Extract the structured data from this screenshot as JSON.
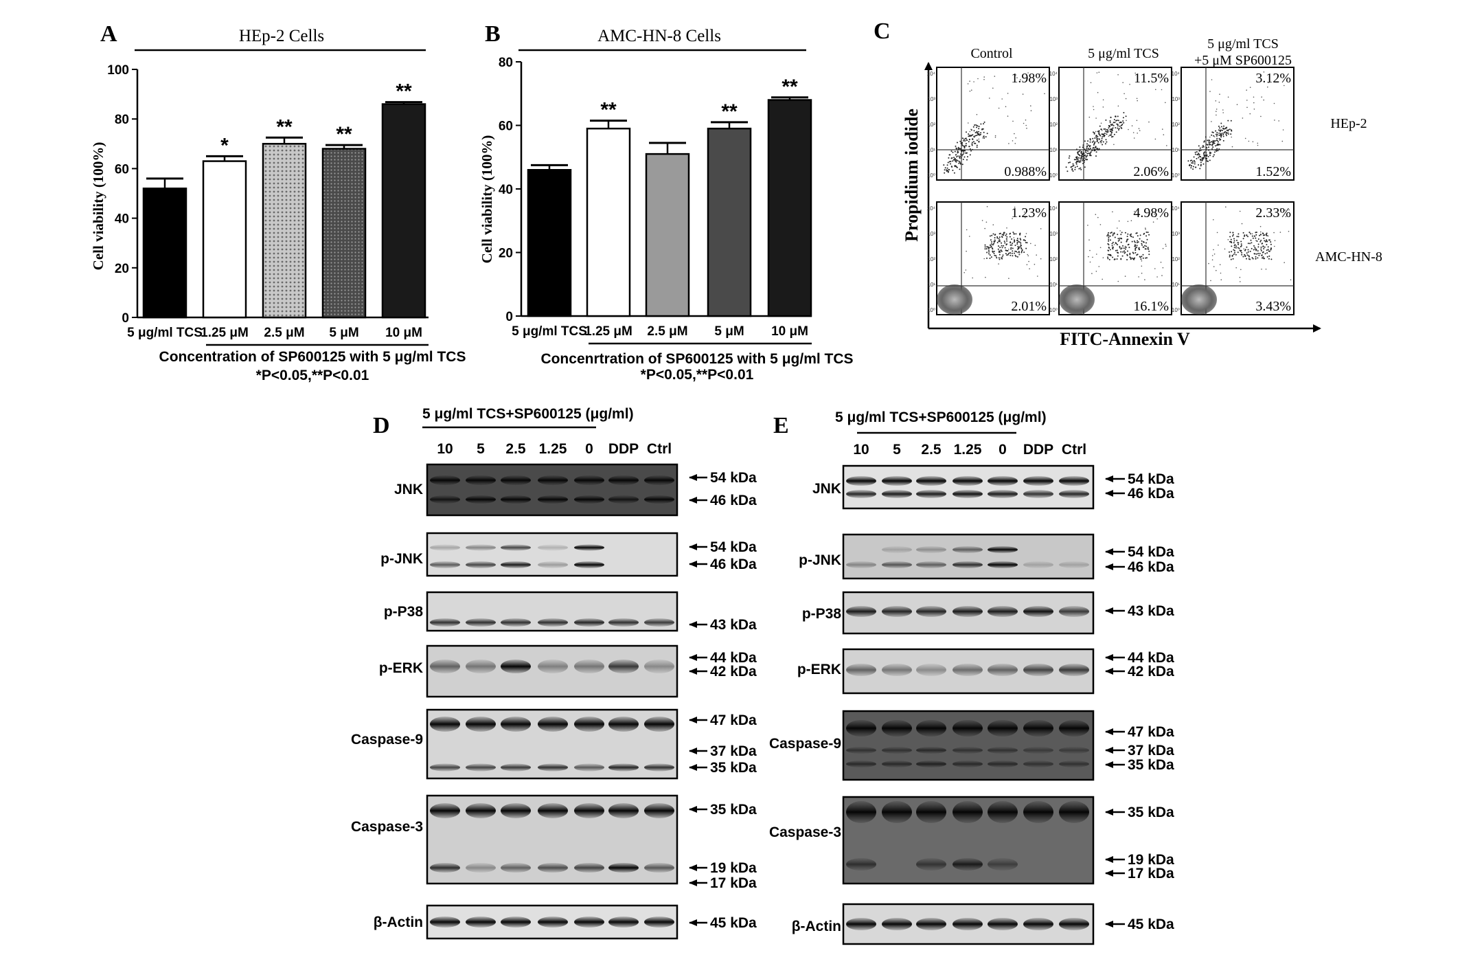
{
  "panels": {
    "A": {
      "letter": "A",
      "title": "HEp-2 Cells",
      "ylabel": "Cell viability (100%)",
      "ylim": [
        0,
        100
      ],
      "yticks": [
        "0",
        "20",
        "40",
        "60",
        "80",
        "100"
      ],
      "xlabel": "Concentration of SP600125 with 5 μg/ml TCS",
      "footnote": "*P<0.05,**P<0.01"
    },
    "B": {
      "letter": "B",
      "title": "AMC-HN-8 Cells",
      "ylabel": "Cell viability (100%)",
      "ylim": [
        0,
        80
      ],
      "yticks": [
        "0",
        "20",
        "40",
        "60",
        "80"
      ],
      "xlabel": "Concenrtration of SP600125 with 5 μg/ml TCS",
      "footnote": "*P<0.05,**P<0.01"
    },
    "C": {
      "letter": "C",
      "col_labels": [
        "Control",
        "5 μg/ml TCS",
        "5 μg/ml TCS",
        "+5 μM SP600125"
      ],
      "row_labels": [
        "HEp-2",
        "AMC-HN-8"
      ],
      "ylabel": "Propidium iodide",
      "xlabel": "FITC-Annexin V",
      "quadrants": [
        [
          "1.98%",
          "0.988%"
        ],
        [
          "11.5%",
          "2.06%"
        ],
        [
          "3.12%",
          "1.52%"
        ],
        [
          "1.23%",
          "2.01%"
        ],
        [
          "4.98%",
          "16.1%"
        ],
        [
          "2.33%",
          "3.43%"
        ]
      ],
      "axis_ticks": [
        "10⁰",
        "10¹",
        "10²",
        "10³",
        "10⁴"
      ]
    },
    "D": {
      "letter": "D",
      "header": "5 μg/ml TCS+SP600125 (μg/ml)",
      "lanes": [
        "10",
        "5",
        "2.5",
        "1.25",
        "0",
        "DDP",
        "Ctrl"
      ],
      "blots": [
        {
          "label": "JNK",
          "markers": [
            "54 kDa",
            "46 kDa"
          ]
        },
        {
          "label": "p-JNK",
          "markers": [
            "54 kDa",
            "46 kDa"
          ]
        },
        {
          "label": "p-P38",
          "markers": [
            "43 kDa"
          ]
        },
        {
          "label": "p-ERK",
          "markers": [
            "44 kDa",
            "42 kDa"
          ]
        },
        {
          "label": "Caspase-9",
          "markers": [
            "47 kDa",
            "37 kDa",
            "35 kDa"
          ]
        },
        {
          "label": "Caspase-3",
          "markers": [
            "35 kDa",
            "19 kDa",
            "17 kDa"
          ]
        },
        {
          "label": "β-Actin",
          "markers": [
            "45 kDa"
          ]
        }
      ]
    },
    "E": {
      "letter": "E",
      "header": "5 μg/ml TCS+SP600125 (μg/ml)",
      "lanes": [
        "10",
        "5",
        "2.5",
        "1.25",
        "0",
        "DDP",
        "Ctrl"
      ],
      "blots": [
        {
          "label": "JNK",
          "markers": [
            "54 kDa",
            "46 kDa"
          ]
        },
        {
          "label": "p-JNK",
          "markers": [
            "54 kDa",
            "46 kDa"
          ]
        },
        {
          "label": "p-P38",
          "markers": [
            "43 kDa"
          ]
        },
        {
          "label": "p-ERK",
          "markers": [
            "44 kDa",
            "42 kDa"
          ]
        },
        {
          "label": "Caspase-9",
          "markers": [
            "47 kDa",
            "37 kDa",
            "35 kDa"
          ]
        },
        {
          "label": "Caspase-3",
          "markers": [
            "35 kDa",
            "19 kDa",
            "17 kDa"
          ]
        },
        {
          "label": "β-Actin",
          "markers": [
            "45 kDa"
          ]
        }
      ]
    }
  },
  "chart_data": [
    {
      "type": "bar",
      "title": "HEp-2 Cells",
      "ylabel": "Cell viability (100%)",
      "xlabel": "Concentration of SP600125 with 5 μg/ml TCS",
      "ylim": [
        0,
        100
      ],
      "categories": [
        "5 μg/ml TCS",
        "1.25 μM",
        "2.5 μM",
        "5 μM",
        "10 μM"
      ],
      "values": [
        52,
        63,
        70,
        68,
        86
      ],
      "errors": [
        4,
        2,
        2.5,
        1.5,
        0.8
      ],
      "significance": [
        "",
        "*",
        "**",
        "**",
        "**"
      ],
      "fills": [
        "#000000",
        "#ffffff",
        "#b0b0b0",
        "#555555",
        "#1a1a1a"
      ]
    },
    {
      "type": "bar",
      "title": "AMC-HN-8 Cells",
      "ylabel": "Cell viability (100%)",
      "xlabel": "Concenrtration of SP600125 with 5 μg/ml TCS",
      "ylim": [
        0,
        80
      ],
      "categories": [
        "5 μg/ml TCS",
        "1.25 μM",
        "2.5 μM",
        "5 μM",
        "10 μM"
      ],
      "values": [
        46,
        59,
        51,
        59,
        68
      ],
      "errors": [
        1.5,
        2.5,
        3.5,
        2,
        0.8
      ],
      "significance": [
        "",
        "**",
        "",
        "**",
        "**"
      ],
      "fills": [
        "#000000",
        "#ffffff",
        "#9a9a9a",
        "#4a4a4a",
        "#1a1a1a"
      ]
    }
  ]
}
